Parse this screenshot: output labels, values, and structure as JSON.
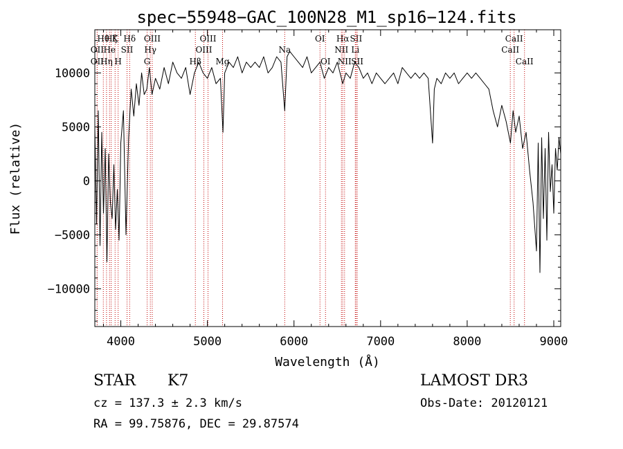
{
  "chart_data": {
    "type": "line",
    "title": "spec−55948−GAC_100N28_M1_sp16−124.fits",
    "xlabel": "Wavelength (Å)",
    "ylabel": "Flux (relative)",
    "xlim": [
      3700,
      9080
    ],
    "ylim": [
      -13500,
      14000
    ],
    "xticks": [
      4000,
      5000,
      6000,
      7000,
      8000,
      9000
    ],
    "xtick_labels": [
      "4000",
      "5000",
      "6000",
      "7000",
      "8000",
      "9000"
    ],
    "yticks": [
      -10000,
      -5000,
      0,
      5000,
      10000
    ],
    "ytick_labels": [
      "−10000",
      "−5000",
      "0",
      "5000",
      "10000"
    ],
    "grid": false,
    "series": [
      {
        "name": "flux",
        "x": [
          3700,
          3720,
          3740,
          3760,
          3780,
          3800,
          3820,
          3840,
          3860,
          3880,
          3900,
          3920,
          3940,
          3960,
          3980,
          4000,
          4030,
          4060,
          4090,
          4120,
          4150,
          4180,
          4210,
          4240,
          4270,
          4300,
          4330,
          4360,
          4400,
          4450,
          4500,
          4550,
          4600,
          4650,
          4700,
          4750,
          4800,
          4850,
          4900,
          4950,
          5000,
          5050,
          5100,
          5150,
          5180,
          5200,
          5250,
          5300,
          5350,
          5400,
          5450,
          5500,
          5550,
          5600,
          5650,
          5700,
          5750,
          5800,
          5850,
          5893,
          5920,
          5950,
          6000,
          6050,
          6100,
          6150,
          6200,
          6250,
          6300,
          6350,
          6400,
          6450,
          6500,
          6563,
          6600,
          6650,
          6700,
          6750,
          6800,
          6850,
          6900,
          6950,
          7000,
          7050,
          7100,
          7150,
          7200,
          7250,
          7300,
          7350,
          7400,
          7450,
          7500,
          7550,
          7600,
          7620,
          7650,
          7700,
          7750,
          7800,
          7850,
          7900,
          7950,
          8000,
          8050,
          8100,
          8150,
          8200,
          8250,
          8300,
          8350,
          8400,
          8450,
          8500,
          8530,
          8560,
          8600,
          8640,
          8680,
          8720,
          8760,
          8800,
          8820,
          8840,
          8860,
          8880,
          8900,
          8920,
          8940,
          8960,
          8980,
          9000,
          9020,
          9040,
          9060,
          9080
        ],
        "values": [
          5000,
          -4000,
          6500,
          -6000,
          4500,
          -3000,
          3000,
          -7500,
          2500,
          -2000,
          -3500,
          1500,
          -4500,
          -800,
          -5500,
          3500,
          6500,
          -5000,
          4000,
          8500,
          6000,
          9000,
          7000,
          10000,
          8000,
          8500,
          10500,
          8000,
          9500,
          8500,
          10500,
          9000,
          11000,
          10000,
          9500,
          10500,
          8000,
          10000,
          11000,
          10000,
          9500,
          10500,
          9000,
          9500,
          4500,
          10000,
          11000,
          10500,
          11500,
          10000,
          11000,
          10500,
          11000,
          10500,
          11500,
          10000,
          10500,
          11500,
          11000,
          6500,
          11500,
          12000,
          11500,
          11000,
          10500,
          11500,
          10000,
          10500,
          11000,
          9500,
          10500,
          10000,
          11000,
          9000,
          10000,
          9500,
          11000,
          10500,
          9500,
          10000,
          9000,
          10000,
          9500,
          9000,
          9500,
          10000,
          9000,
          10500,
          10000,
          9500,
          10000,
          9500,
          10000,
          9500,
          3500,
          8500,
          9500,
          9000,
          10000,
          9500,
          10000,
          9000,
          9500,
          10000,
          9500,
          10000,
          9500,
          9000,
          8500,
          6500,
          5000,
          7000,
          5500,
          3500,
          6500,
          4500,
          6000,
          3000,
          4500,
          1000,
          -2000,
          -6500,
          3500,
          -8500,
          4000,
          -3500,
          3000,
          -5500,
          4500,
          -1000,
          1500,
          -3000,
          3000,
          1000,
          4000,
          2500
        ]
      }
    ],
    "spectral_lines": [
      {
        "label": "Hθ",
        "wavelength": 3798,
        "row": 1
      },
      {
        "label": "OII",
        "wavelength": 3727,
        "row": 2
      },
      {
        "label": "OII",
        "wavelength": 3727,
        "row": 3
      },
      {
        "label": "Hζ",
        "wavelength": 3889,
        "row": 1
      },
      {
        "label": "He",
        "wavelength": 3870,
        "row": 2
      },
      {
        "label": "Hη",
        "wavelength": 3835,
        "row": 3
      },
      {
        "label": "K",
        "wavelength": 3934,
        "row": 1
      },
      {
        "label": "SII",
        "wavelength": 4072,
        "row": 2
      },
      {
        "label": "H",
        "wavelength": 3969,
        "row": 3
      },
      {
        "label": "Hδ",
        "wavelength": 4102,
        "row": 1
      },
      {
        "label": "OIII",
        "wavelength": 4363,
        "row": 1
      },
      {
        "label": "Hγ",
        "wavelength": 4341,
        "row": 2
      },
      {
        "label": "G",
        "wavelength": 4304,
        "row": 3
      },
      {
        "label": "Hβ",
        "wavelength": 4861,
        "row": 3
      },
      {
        "label": "OIII",
        "wavelength": 5007,
        "row": 1
      },
      {
        "label": "OIII",
        "wavelength": 4959,
        "row": 2
      },
      {
        "label": "Mg",
        "wavelength": 5175,
        "row": 3
      },
      {
        "label": "Na",
        "wavelength": 5893,
        "row": 2
      },
      {
        "label": "OI",
        "wavelength": 6300,
        "row": 1
      },
      {
        "label": "OI",
        "wavelength": 6364,
        "row": 3
      },
      {
        "label": "Hα",
        "wavelength": 6563,
        "row": 1
      },
      {
        "label": "SII",
        "wavelength": 6717,
        "row": 1
      },
      {
        "label": "NII",
        "wavelength": 6548,
        "row": 2
      },
      {
        "label": "Li",
        "wavelength": 6708,
        "row": 2
      },
      {
        "label": "NII",
        "wavelength": 6584,
        "row": 3
      },
      {
        "label": "SII",
        "wavelength": 6731,
        "row": 3
      },
      {
        "label": "CaII",
        "wavelength": 8542,
        "row": 1
      },
      {
        "label": "CaII",
        "wavelength": 8498,
        "row": 2
      },
      {
        "label": "CaII",
        "wavelength": 8662,
        "row": 3
      }
    ]
  },
  "info": {
    "object_class": "STAR",
    "subclass": "K7",
    "survey": "LAMOST DR3",
    "redshift_text": "cz = 137.3 ± 2.3 km/s",
    "obs_date": "Obs-Date: 20120121",
    "coords": "RA =  99.75876, DEC =  29.87574"
  }
}
